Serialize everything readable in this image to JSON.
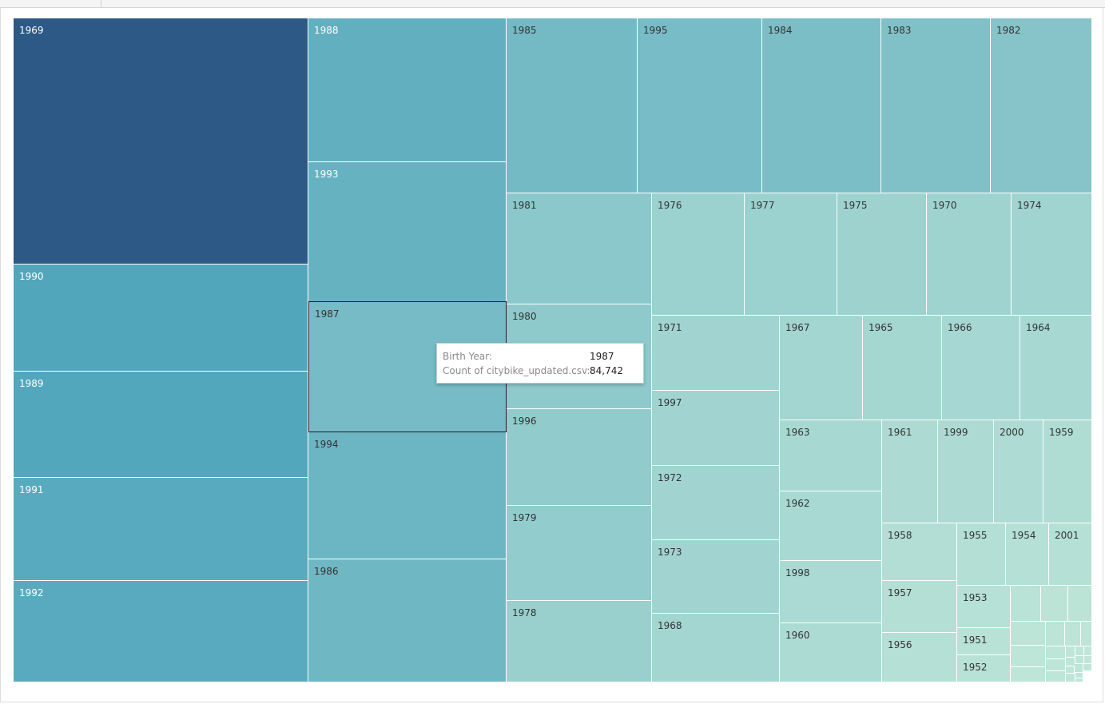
{
  "chart_data": {
    "type": "treemap",
    "field": "Birth Year",
    "measure": "Count of citybike_updated.csv",
    "nodes": [
      {
        "label": "1969",
        "value": 270
      },
      {
        "label": "1988",
        "value": 105
      },
      {
        "label": "1993",
        "value": 100
      },
      {
        "label": "1987",
        "value": 84.742
      },
      {
        "label": "1994",
        "value": 95
      },
      {
        "label": "1986",
        "value": 92
      },
      {
        "label": "1990",
        "value": 119
      },
      {
        "label": "1989",
        "value": 118
      },
      {
        "label": "1991",
        "value": 114
      },
      {
        "label": "1992",
        "value": 113
      },
      {
        "label": "1985",
        "value": 87
      },
      {
        "label": "1995",
        "value": 83
      },
      {
        "label": "1984",
        "value": 79
      },
      {
        "label": "1983",
        "value": 73
      },
      {
        "label": "1982",
        "value": 67
      },
      {
        "label": "1981",
        "value": 61
      },
      {
        "label": "1980",
        "value": 58
      },
      {
        "label": "1996",
        "value": 54
      },
      {
        "label": "1979",
        "value": 52
      },
      {
        "label": "1978",
        "value": 45
      },
      {
        "label": "1976",
        "value": 43
      },
      {
        "label": "1977",
        "value": 43
      },
      {
        "label": "1975",
        "value": 41
      },
      {
        "label": "1970",
        "value": 39
      },
      {
        "label": "1974",
        "value": 37
      },
      {
        "label": "1971",
        "value": 36
      },
      {
        "label": "1997",
        "value": 36
      },
      {
        "label": "1972",
        "value": 36
      },
      {
        "label": "1973",
        "value": 36
      },
      {
        "label": "1968",
        "value": 34
      },
      {
        "label": "1967",
        "value": 34
      },
      {
        "label": "1965",
        "value": 31
      },
      {
        "label": "1966",
        "value": 30
      },
      {
        "label": "1964",
        "value": 29
      },
      {
        "label": "1963",
        "value": 28
      },
      {
        "label": "1962",
        "value": 27
      },
      {
        "label": "1998",
        "value": 25
      },
      {
        "label": "1960",
        "value": 23
      },
      {
        "label": "1961",
        "value": 22
      },
      {
        "label": "1999",
        "value": 22
      },
      {
        "label": "2000",
        "value": 20
      },
      {
        "label": "1959",
        "value": 19
      },
      {
        "label": "1958",
        "value": 16
      },
      {
        "label": "1955",
        "value": 14
      },
      {
        "label": "1954",
        "value": 12
      },
      {
        "label": "2001",
        "value": 12
      },
      {
        "label": "1957",
        "value": 14
      },
      {
        "label": "1956",
        "value": 13
      },
      {
        "label": "1953",
        "value": 11
      },
      {
        "label": "1951",
        "value": 8
      },
      {
        "label": "1952",
        "value": 8
      },
      {
        "label": "",
        "value": 6
      },
      {
        "label": "",
        "value": 5
      },
      {
        "label": "",
        "value": 5
      },
      {
        "label": "",
        "value": 4
      },
      {
        "label": "",
        "value": 3
      },
      {
        "label": "",
        "value": 3
      },
      {
        "label": "",
        "value": 2
      },
      {
        "label": "",
        "value": 2
      },
      {
        "label": "",
        "value": 2
      },
      {
        "label": "",
        "value": 2
      },
      {
        "label": "",
        "value": 1
      },
      {
        "label": "",
        "value": 1
      },
      {
        "label": "",
        "value": 1
      },
      {
        "label": "",
        "value": 1
      },
      {
        "label": "",
        "value": 1
      },
      {
        "label": "",
        "value": 1
      },
      {
        "label": "",
        "value": 1
      },
      {
        "label": "",
        "value": 1
      },
      {
        "label": "",
        "value": 1
      },
      {
        "label": "",
        "value": 1
      },
      {
        "label": "",
        "value": 1
      },
      {
        "label": "",
        "value": 1
      },
      {
        "label": "",
        "value": 1
      },
      {
        "label": "",
        "value": 1
      }
    ],
    "highlighted": "1987"
  },
  "tooltip": {
    "rows": [
      {
        "key": "Birth Year:",
        "value": "1987"
      },
      {
        "key": "Count of citybike_updated.csv:",
        "value": "84,742"
      }
    ]
  },
  "colors": {
    "darkest": "#2c5985",
    "dark": "#52a6bc",
    "light": "#bfe6d8",
    "label_dark_bg": "#ffffff",
    "label_light_bg": "#333333"
  }
}
